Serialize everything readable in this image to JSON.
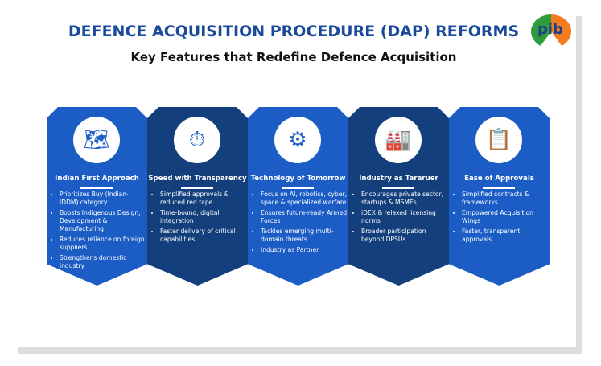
{
  "header": {
    "title": "DEFENCE ACQUISITION PROCEDURE (DAP) REFORMS",
    "subtitle": "Key Features that Redefine Defence Acquisition",
    "logo_text": "pib"
  },
  "cards": [
    {
      "title": "Indian First Approach",
      "icon": "india-map-icon",
      "glyph": "🗺",
      "points": [
        "Prioritizes Buy (Indian-IDDM) category",
        "Boosts Indigenous Design, Development & Manufacturing",
        "Reduces reliance on foreign suppliers",
        "Strengthens domestic industry"
      ]
    },
    {
      "title": "Speed with Transparency",
      "icon": "stopwatch-icon",
      "glyph": "⏱",
      "points": [
        "Simplified approvals & reduced red tape",
        "Time-bound, digital integration",
        "Faster delivery of critical capabilities"
      ]
    },
    {
      "title": "Technology of Tomorrow",
      "icon": "circuit-chip-icon",
      "glyph": "⚙",
      "points": [
        "Focus on AI, robotics, cyber, space & specialized warfare",
        "Ensures future-ready Armed Forces",
        "Tackles emerging multi-domain threats",
        "Industry as Partner"
      ]
    },
    {
      "title": "Industry as Tararuer",
      "icon": "factory-icon",
      "glyph": "🏭",
      "points": [
        "Encourages private sector, startups & MSMEs",
        "iDEX & relaxed licensing norms",
        "Broader participation beyond DPSUs"
      ]
    },
    {
      "title": "Ease of Approvals",
      "icon": "approved-document-icon",
      "glyph": "📋",
      "points": [
        "Simplified contracts & frameworks",
        "Empowered Acquisition Wings",
        "Faster, transparent approvals"
      ]
    }
  ],
  "colors": {
    "blue": "#1b5cc5",
    "navy": "#133f7c",
    "title": "#1a4a9c"
  }
}
